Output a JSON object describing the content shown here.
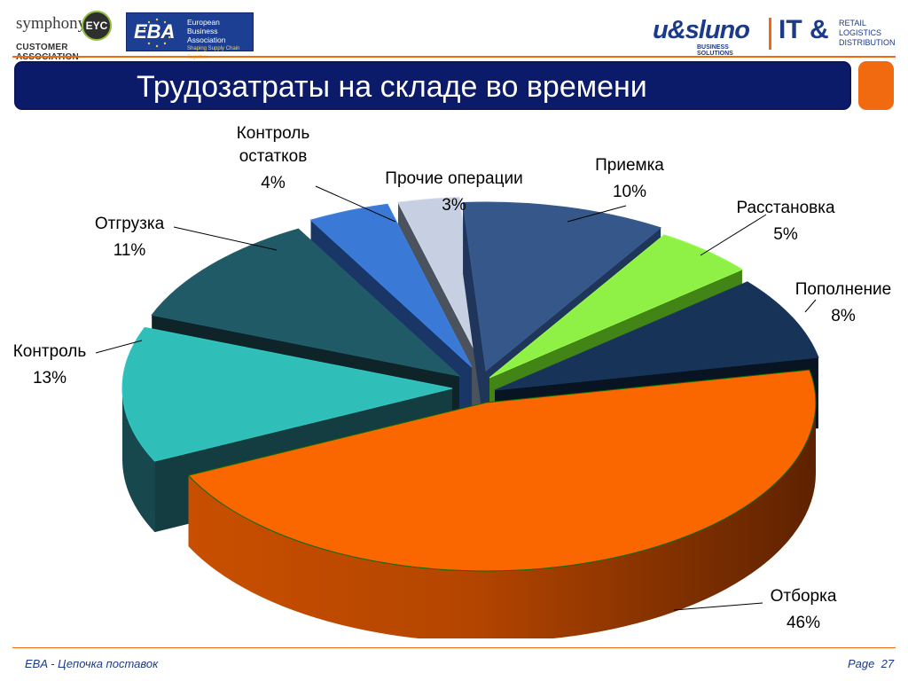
{
  "header": {
    "symphony": {
      "name": "symphony",
      "badge": "EYC",
      "sub": "CUSTOMER ASSOCIATION"
    },
    "eba": {
      "mark": "EBA",
      "line1": "European",
      "line2": "Business",
      "line3": "Association",
      "line4": "Shaping Supply Chain Together"
    },
    "usluno": {
      "name": "u&sluno",
      "sub": "BUSINESS SOLUTIONS"
    },
    "it": {
      "text": "IT &",
      "line1": "RETAIL",
      "line2": "LOGISTICS",
      "line3": "DISTRIBUTION"
    }
  },
  "slide": {
    "title": "Трудозатраты на складе во времени"
  },
  "footer": {
    "left": "EBA - Цепочка поставок",
    "page_label": "Page",
    "page_number": "27"
  },
  "colors": {
    "accent": "#f26a10",
    "title_bg": "#0c1a6a",
    "brand": "#1b3a8a"
  },
  "chart_data": {
    "type": "pie",
    "style": "3d-exploded",
    "title": "",
    "series": [
      {
        "name": "Приемка",
        "value": 10,
        "label": "10%",
        "color": "#35578a"
      },
      {
        "name": "Расстановка",
        "value": 5,
        "label": "5%",
        "color": "#8ff046"
      },
      {
        "name": "Пополнение",
        "value": 8,
        "label": "8%",
        "color": "#173358"
      },
      {
        "name": "Отборка",
        "value": 46,
        "label": "46%",
        "color": "#fa6600"
      },
      {
        "name": "Контроль",
        "value": 13,
        "label": "13%",
        "color": "#30beb9"
      },
      {
        "name": "Отгрузка",
        "value": 11,
        "label": "11%",
        "color": "#205a66"
      },
      {
        "name": "Контроль остатков",
        "value": 4,
        "label": "4%",
        "color": "#3a7ad6"
      },
      {
        "name": "Прочие операции",
        "value": 3,
        "label": "3%",
        "color": "#c6d0e2"
      }
    ]
  }
}
